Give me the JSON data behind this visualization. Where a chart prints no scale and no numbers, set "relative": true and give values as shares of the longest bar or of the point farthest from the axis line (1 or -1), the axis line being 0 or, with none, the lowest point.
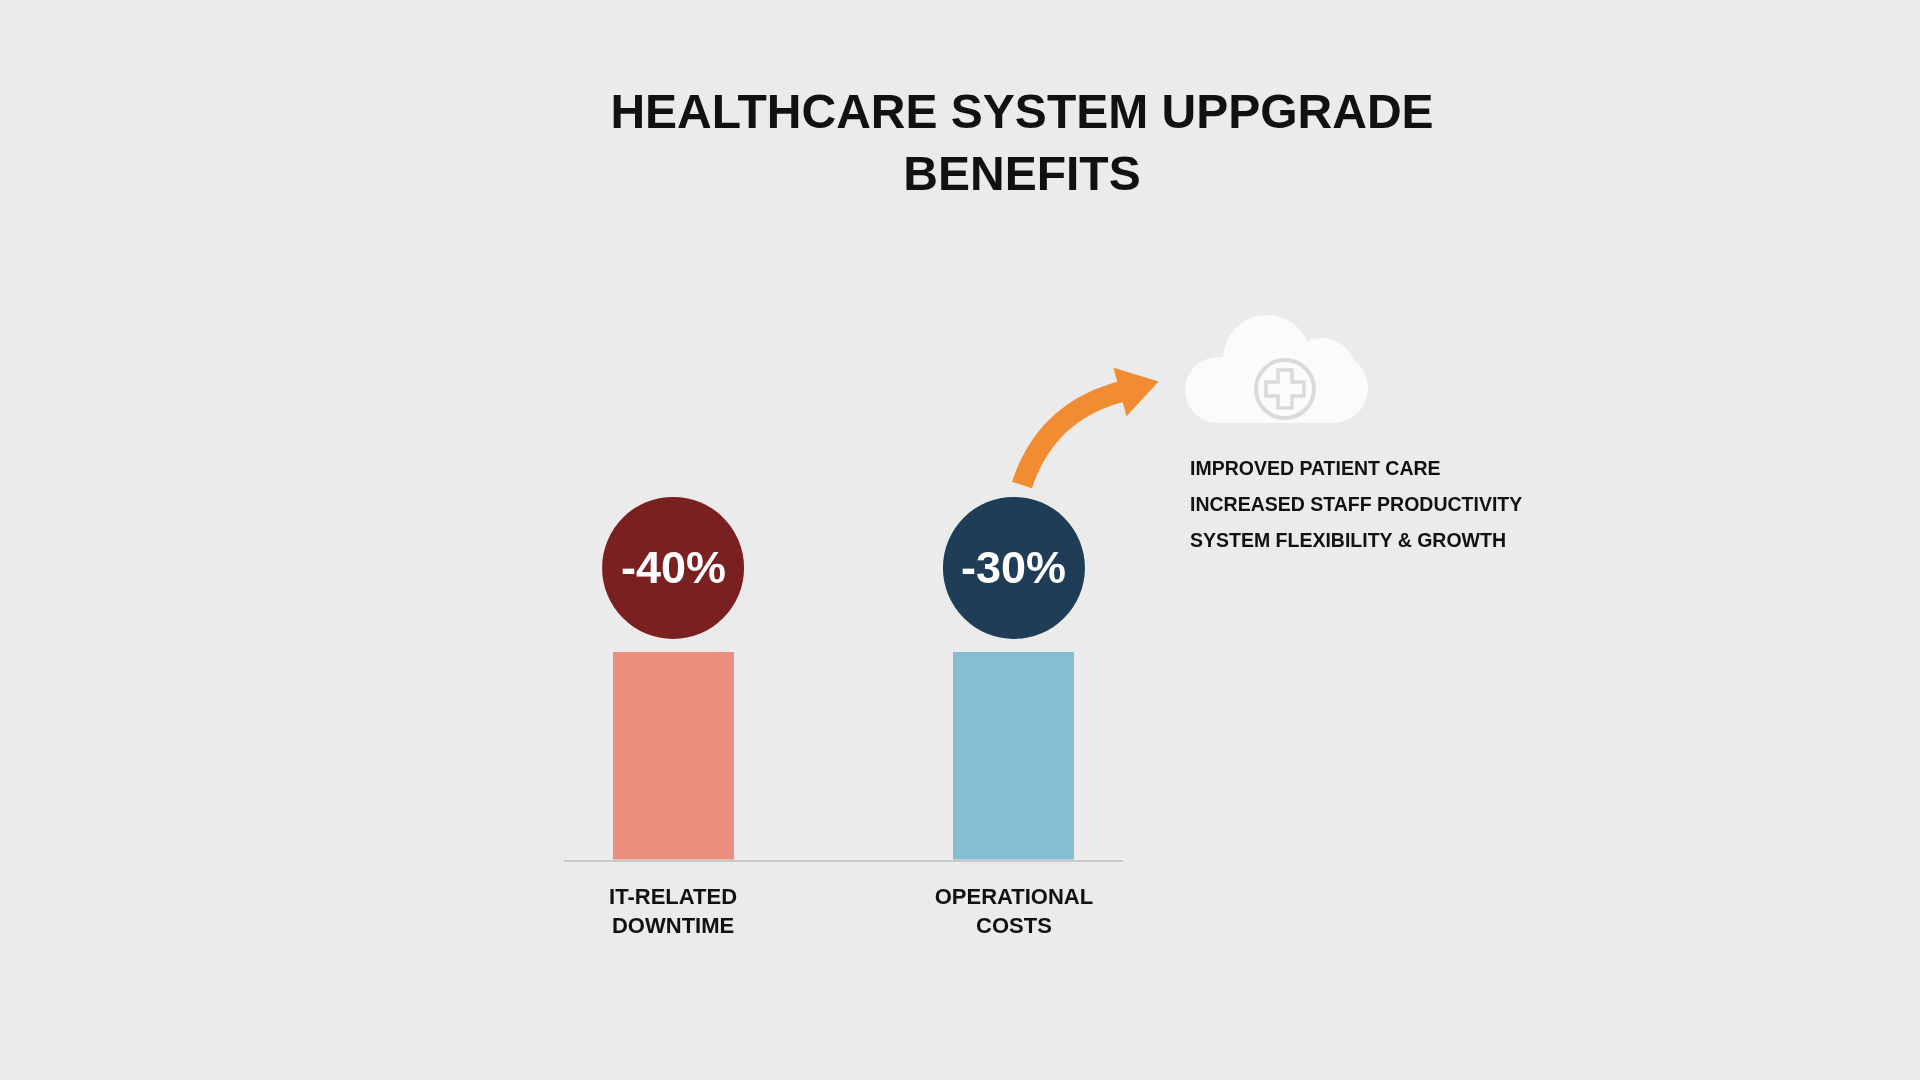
{
  "chart_data": {
    "type": "bar",
    "title": "HEALTHCARE SYSTEM UPPGRADE BENEFITS",
    "categories": [
      "IT-RELATED DOWNTIME",
      "OPERATIONAL COSTS"
    ],
    "relative": true,
    "series": [
      {
        "colors": [
          "#eb8e7e",
          "#86bdd5"
        ],
        "values": [
          0.71,
          0.71
        ]
      },
      {
        "type": "scatter",
        "marker": "circle",
        "x": [
          "IT-RELATED DOWNTIME",
          "OPERATIONAL COSTS"
        ],
        "colors": [
          "#7a2020",
          "#1f3d56"
        ],
        "values": [
          1,
          1
        ]
      }
    ],
    "annotations": [
      {
        "text": "-40%",
        "x": "IT-RELATED DOWNTIME",
        "y": 1
      },
      {
        "text": "-30%",
        "x": "OPERATIONAL COSTS",
        "y": 1
      },
      "IMPROVED PATIENT CARE",
      "INCREASED STAFF PRODUCTIVITY",
      "SYSTEM FLEXIBILITY & GROWTH"
    ],
    "grid": false,
    "tick_labels": "x"
  }
}
